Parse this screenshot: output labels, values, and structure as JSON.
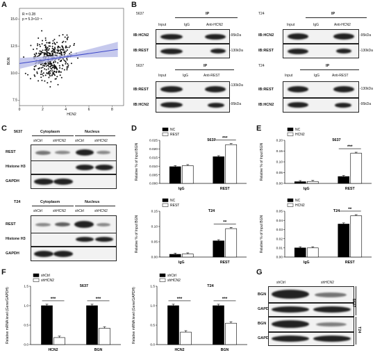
{
  "panels": {
    "A": {
      "letter": "A"
    },
    "B": {
      "letter": "B"
    },
    "C": {
      "letter": "C"
    },
    "D": {
      "letter": "D"
    },
    "E": {
      "letter": "E"
    },
    "F": {
      "letter": "F"
    },
    "G": {
      "letter": "G"
    }
  },
  "panelA": {
    "stat_r": "R = 0.28",
    "stat_p": "p = 5.3×10⁻⁸",
    "xlabel": "HCN2",
    "ylabel": "BGN",
    "xticks": [
      "0",
      "2",
      "4",
      "6",
      "8"
    ],
    "yticks": [
      "7.5",
      "10.0",
      "12.5",
      "15.0"
    ]
  },
  "panelB": {
    "cells": [
      "5637",
      "T24"
    ],
    "ip": "IP",
    "input": "Input",
    "igg": "IgG",
    "anti_hcn2": "Anti-HCN2",
    "anti_rest": "Anti-REST",
    "ib_hcn2": "IB:HCN2",
    "ib_rest": "IB:REST",
    "kda95": "-95kDa",
    "kda130": "-130kDa"
  },
  "panelC": {
    "cells": [
      "5637",
      "T24"
    ],
    "cytoplasm": "Cytoplasm",
    "nucleus": "Nucleus",
    "shctrl": "shCtrl",
    "shhcn2": "shHCN2",
    "rows": [
      "REST",
      "Histone H3",
      "GAPDH"
    ]
  },
  "panelG": {
    "shctrl": "shCtrl",
    "shhcn2": "shHCN2",
    "rows": [
      "BGN",
      "GAPDH",
      "BGN",
      "GAPDH"
    ],
    "cells": [
      "5637",
      "T24"
    ]
  },
  "chart_data": [
    {
      "panel": "A",
      "type": "scatter",
      "xlabel": "HCN2",
      "ylabel": "BGN",
      "xlim": [
        0,
        9
      ],
      "ylim": [
        7,
        16
      ],
      "note": "Correlation scatter of ~400 samples with regression line",
      "fit": {
        "x": [
          0,
          8.5
        ],
        "y": [
          10.9,
          12.2
        ]
      }
    },
    {
      "panel": "D-top",
      "type": "bar",
      "title": "5637",
      "categories": [
        "IgG",
        "REST"
      ],
      "series": [
        {
          "name": "NC",
          "values": [
            0.0097,
            0.0155
          ]
        },
        {
          "name": "REST",
          "values": [
            0.0103,
            0.0225
          ]
        }
      ],
      "ylabel": "Relative % of Input BGN",
      "ylim": [
        0,
        0.025
      ],
      "yticks": [
        "0.000",
        "0.005",
        "0.010",
        "0.015",
        "0.020",
        "0.025"
      ],
      "sig": "***"
    },
    {
      "panel": "D-bottom",
      "type": "bar",
      "title": "T24",
      "categories": [
        "IgG",
        "REST"
      ],
      "series": [
        {
          "name": "NC",
          "values": [
            0.009,
            0.053
          ]
        },
        {
          "name": "REST",
          "values": [
            0.01,
            0.093
          ]
        }
      ],
      "ylabel": "Relative % of Input BGN",
      "ylim": [
        0,
        0.15
      ],
      "yticks": [
        "0.00",
        "0.05",
        "0.10",
        "0.15"
      ],
      "sig": "**"
    },
    {
      "panel": "E-top",
      "type": "bar",
      "title": "5637",
      "categories": [
        "IgG",
        "REST"
      ],
      "series": [
        {
          "name": "NC",
          "values": [
            0.008,
            0.032
          ]
        },
        {
          "name": "HCN2",
          "values": [
            0.009,
            0.14
          ]
        }
      ],
      "ylabel": "Relative % of Input BGN",
      "ylim": [
        0,
        0.2
      ],
      "yticks": [
        "0.00",
        "0.05",
        "0.10",
        "0.15",
        "0.20"
      ],
      "sig": "***"
    },
    {
      "panel": "E-bottom",
      "type": "bar",
      "title": "T24",
      "categories": [
        "IgG",
        "REST"
      ],
      "series": [
        {
          "name": "NC",
          "values": [
            0.01,
            0.036
          ]
        },
        {
          "name": "HCN2",
          "values": [
            0.01,
            0.045
          ]
        }
      ],
      "ylabel": "Relative % of Input BGN",
      "ylim": [
        0,
        0.05
      ],
      "yticks": [
        "0.00",
        "0.01",
        "0.02",
        "0.03",
        "0.04",
        "0.05"
      ],
      "sig": "**"
    },
    {
      "panel": "F-left",
      "type": "bar",
      "title": "5637",
      "categories": [
        "HCN2",
        "BGN"
      ],
      "series": [
        {
          "name": "shCtrl",
          "values": [
            1.0,
            1.0
          ]
        },
        {
          "name": "shHCN2",
          "values": [
            0.18,
            0.42
          ]
        }
      ],
      "ylabel": "Relative mRNA level (Gene/GAPDH)",
      "ylim": [
        0,
        1.5
      ],
      "yticks": [
        "0.0",
        "0.5",
        "1.0",
        "1.5"
      ],
      "sig": "***"
    },
    {
      "panel": "F-right",
      "type": "bar",
      "title": "T24",
      "categories": [
        "HCN2",
        "BGN"
      ],
      "series": [
        {
          "name": "shCtrl",
          "values": [
            1.0,
            1.0
          ]
        },
        {
          "name": "shHCN2",
          "values": [
            0.32,
            0.55
          ]
        }
      ],
      "ylabel": "Relative mRNA level (Gene/GAPDH)",
      "ylim": [
        0,
        1.5
      ],
      "yticks": [
        "0.0",
        "0.5",
        "1.0",
        "1.5"
      ],
      "sig": "***"
    }
  ]
}
